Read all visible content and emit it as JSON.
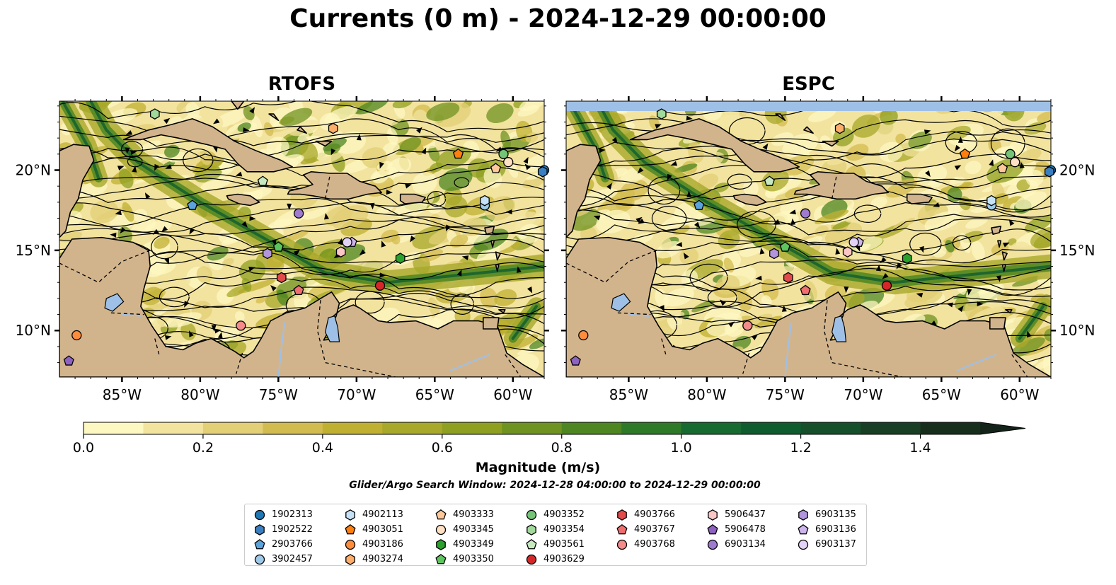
{
  "title": "Currents (0 m) - 2024-12-29 00:00:00",
  "panels": [
    {
      "name": "RTOFS",
      "left": 84,
      "right": 769
    },
    {
      "name": "ESPC",
      "left": 800,
      "right": 1485
    }
  ],
  "axes": {
    "lon_ticks": [
      "85°W",
      "80°W",
      "75°W",
      "70°W",
      "65°W",
      "60°W"
    ],
    "lat_ticks": [
      "20°N",
      "15°N",
      "10°N"
    ]
  },
  "colorbar": {
    "label": "Magnitude (m/s)",
    "ticks": [
      "0.0",
      "0.2",
      "0.4",
      "0.6",
      "0.8",
      "1.0",
      "1.2",
      "1.4"
    ],
    "colors": [
      "#fdf7c1",
      "#f2e39e",
      "#e2cf76",
      "#d3bc4f",
      "#c0b032",
      "#a8a82a",
      "#8fa020",
      "#6f9321",
      "#4e8622",
      "#2f7a28",
      "#176b30",
      "#0f5d2f",
      "#15502a",
      "#183f23",
      "#172e1c",
      "#14231a"
    ]
  },
  "window_text": "Glider/Argo Search Window: 2024-12-28 04:00:00 to 2024-12-29 00:00:00",
  "land_color": "#d2b48c",
  "water_color": "#9fc0e6",
  "legend": [
    [
      {
        "id": "1902313",
        "color": "#1f77b4",
        "shape": "circle"
      },
      {
        "id": "1902522",
        "color": "#3a7fc1",
        "shape": "hexagon"
      },
      {
        "id": "2903766",
        "color": "#5ba3dc",
        "shape": "pentagon"
      },
      {
        "id": "3902457",
        "color": "#9ecae9",
        "shape": "circle"
      }
    ],
    [
      {
        "id": "4902113",
        "color": "#c6e2f7",
        "shape": "hexagon"
      },
      {
        "id": "4903051",
        "color": "#fd7f0e",
        "shape": "pentagon"
      },
      {
        "id": "4903186",
        "color": "#fd8d3c",
        "shape": "circle"
      },
      {
        "id": "4903274",
        "color": "#fdae6b",
        "shape": "hexagon"
      }
    ],
    [
      {
        "id": "4903333",
        "color": "#fdc89a",
        "shape": "pentagon"
      },
      {
        "id": "4903345",
        "color": "#fee0c2",
        "shape": "circle"
      },
      {
        "id": "4903349",
        "color": "#2ca02c",
        "shape": "hexagon"
      },
      {
        "id": "4903350",
        "color": "#5ec45e",
        "shape": "pentagon"
      }
    ],
    [
      {
        "id": "4903352",
        "color": "#74c476",
        "shape": "circle"
      },
      {
        "id": "4903354",
        "color": "#a1d99b",
        "shape": "hexagon"
      },
      {
        "id": "4903561",
        "color": "#c7e9c0",
        "shape": "pentagon"
      },
      {
        "id": "4903629",
        "color": "#d62728",
        "shape": "circle"
      }
    ],
    [
      {
        "id": "4903766",
        "color": "#e34a4a",
        "shape": "hexagon"
      },
      {
        "id": "4903767",
        "color": "#ef6f6f",
        "shape": "pentagon"
      },
      {
        "id": "4903768",
        "color": "#f38b8b",
        "shape": "circle"
      }
    ],
    [
      {
        "id": "5906437",
        "color": "#fbc6c6",
        "shape": "hexagon"
      },
      {
        "id": "5906478",
        "color": "#8e62c0",
        "shape": "pentagon"
      },
      {
        "id": "6903134",
        "color": "#9e7bcf",
        "shape": "circle"
      }
    ],
    [
      {
        "id": "6903135",
        "color": "#b295dd",
        "shape": "hexagon"
      },
      {
        "id": "6903136",
        "color": "#cdb5ec",
        "shape": "pentagon"
      },
      {
        "id": "6903137",
        "color": "#e3d2f7",
        "shape": "circle"
      }
    ]
  ],
  "markers": [
    {
      "id": "1902313",
      "lon": -58.0,
      "lat": 20.0
    },
    {
      "id": "1902522",
      "lon": -58.1,
      "lat": 19.9
    },
    {
      "id": "2903766",
      "lon": -80.5,
      "lat": 17.8
    },
    {
      "id": "3902457",
      "lon": -61.8,
      "lat": 17.8
    },
    {
      "id": "4902113",
      "lon": -61.8,
      "lat": 18.1
    },
    {
      "id": "4903051",
      "lon": -63.5,
      "lat": 21.0
    },
    {
      "id": "4903186",
      "lon": -87.9,
      "lat": 9.7
    },
    {
      "id": "4903274",
      "lon": -71.5,
      "lat": 22.6
    },
    {
      "id": "4903333",
      "lon": -61.1,
      "lat": 20.1
    },
    {
      "id": "4903345",
      "lon": -60.3,
      "lat": 20.5
    },
    {
      "id": "4903349",
      "lon": -67.2,
      "lat": 14.5
    },
    {
      "id": "4903350",
      "lon": -75.0,
      "lat": 15.2
    },
    {
      "id": "4903352",
      "lon": -60.6,
      "lat": 21.0
    },
    {
      "id": "4903354",
      "lon": -82.9,
      "lat": 23.5
    },
    {
      "id": "4903561",
      "lon": -76.0,
      "lat": 19.3
    },
    {
      "id": "4903629",
      "lon": -68.5,
      "lat": 12.8
    },
    {
      "id": "4903766",
      "lon": -74.8,
      "lat": 13.3
    },
    {
      "id": "4903767",
      "lon": -73.7,
      "lat": 12.5
    },
    {
      "id": "4903768",
      "lon": -77.4,
      "lat": 10.3
    },
    {
      "id": "5906437",
      "lon": -71.0,
      "lat": 14.9
    },
    {
      "id": "5906478",
      "lon": -88.4,
      "lat": 8.1
    },
    {
      "id": "6903134",
      "lon": -73.7,
      "lat": 17.3
    },
    {
      "id": "6903135",
      "lon": -75.7,
      "lat": 14.8
    },
    {
      "id": "6903136",
      "lon": -70.3,
      "lat": 15.5
    },
    {
      "id": "6903137",
      "lon": -70.6,
      "lat": 15.5
    }
  ]
}
